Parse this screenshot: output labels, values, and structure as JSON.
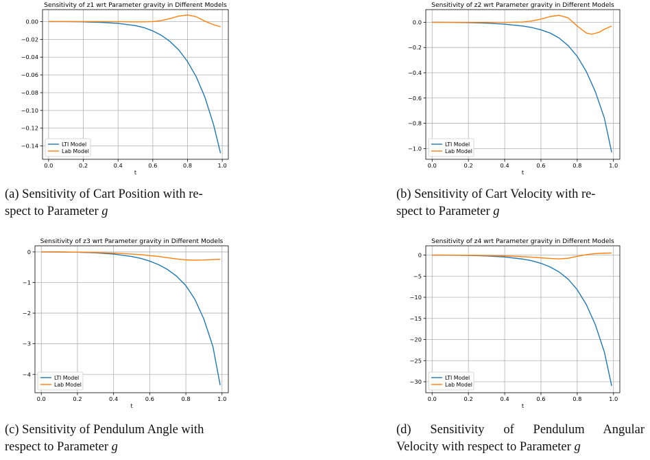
{
  "chart_data": [
    {
      "id": "a",
      "type": "line",
      "title": "Sensitivity of z1 wrt Parameter gravity in Different Models",
      "xlabel": "t",
      "ylabel": "",
      "xlim": [
        -0.035,
        1.035
      ],
      "ylim": [
        -0.155,
        0.0135
      ],
      "xticks": [
        0.0,
        0.2,
        0.4,
        0.6,
        0.8,
        1.0
      ],
      "yticks": [
        0.0,
        -0.02,
        -0.04,
        -0.06,
        -0.08,
        -0.1,
        -0.12,
        -0.14
      ],
      "ytick_decimals": 2,
      "grid": true,
      "legend": "lower-left",
      "series": [
        {
          "name": "LTI Model",
          "color": "#1f77b4",
          "x": [
            0,
            0.1,
            0.2,
            0.3,
            0.4,
            0.5,
            0.55,
            0.6,
            0.65,
            0.7,
            0.75,
            0.8,
            0.85,
            0.9,
            0.95,
            0.99
          ],
          "y": [
            0,
            0,
            -0.0003,
            -0.0008,
            -0.002,
            -0.0045,
            -0.0068,
            -0.0105,
            -0.0155,
            -0.0225,
            -0.032,
            -0.045,
            -0.062,
            -0.085,
            -0.116,
            -0.148
          ]
        },
        {
          "name": "Lab Model",
          "color": "#ff7f0e",
          "x": [
            0,
            0.1,
            0.2,
            0.3,
            0.4,
            0.5,
            0.55,
            0.6,
            0.65,
            0.7,
            0.75,
            0.8,
            0.85,
            0.9,
            0.95,
            0.99
          ],
          "y": [
            0,
            0,
            0,
            0,
            -0.0001,
            -0.0003,
            -0.0003,
            0,
            0.0012,
            0.0035,
            0.0062,
            0.0075,
            0.0055,
            0.0005,
            -0.0035,
            -0.0058
          ]
        }
      ]
    },
    {
      "id": "b",
      "type": "line",
      "title": "Sensitivity of z2 wrt Parameter gravity in Different Models",
      "xlabel": "t",
      "ylabel": "",
      "xlim": [
        -0.035,
        1.035
      ],
      "ylim": [
        -1.085,
        0.1
      ],
      "xticks": [
        0.0,
        0.2,
        0.4,
        0.6,
        0.8,
        1.0
      ],
      "yticks": [
        0.0,
        -0.2,
        -0.4,
        -0.6,
        -0.8,
        -1.0
      ],
      "ytick_decimals": 1,
      "grid": true,
      "legend": "lower-left",
      "series": [
        {
          "name": "LTI Model",
          "color": "#1f77b4",
          "x": [
            0,
            0.1,
            0.2,
            0.3,
            0.4,
            0.5,
            0.55,
            0.6,
            0.65,
            0.7,
            0.75,
            0.8,
            0.85,
            0.9,
            0.95,
            0.99
          ],
          "y": [
            0,
            -0.001,
            -0.003,
            -0.007,
            -0.015,
            -0.03,
            -0.042,
            -0.06,
            -0.085,
            -0.125,
            -0.185,
            -0.27,
            -0.39,
            -0.55,
            -0.76,
            -1.03
          ]
        },
        {
          "name": "Lab Model",
          "color": "#ff7f0e",
          "x": [
            0,
            0.1,
            0.2,
            0.3,
            0.4,
            0.5,
            0.55,
            0.6,
            0.65,
            0.7,
            0.75,
            0.8,
            0.85,
            0.88,
            0.92,
            0.95,
            0.99
          ],
          "y": [
            0,
            0,
            0,
            0,
            -0.001,
            0.002,
            0.01,
            0.025,
            0.045,
            0.055,
            0.035,
            -0.03,
            -0.085,
            -0.095,
            -0.08,
            -0.055,
            -0.03
          ]
        }
      ]
    },
    {
      "id": "c",
      "type": "line",
      "title": "Sensitivity of z3 wrt Parameter gravity in Different Models",
      "xlabel": "t",
      "ylabel": "",
      "xlim": [
        -0.035,
        1.035
      ],
      "ylim": [
        -4.6,
        0.2
      ],
      "xticks": [
        0.0,
        0.2,
        0.4,
        0.6,
        0.8,
        1.0
      ],
      "yticks": [
        0,
        -1,
        -2,
        -3,
        -4
      ],
      "ytick_decimals": 0,
      "grid": true,
      "legend": "lower-left",
      "series": [
        {
          "name": "LTI Model",
          "color": "#1f77b4",
          "x": [
            0,
            0.1,
            0.2,
            0.3,
            0.4,
            0.5,
            0.55,
            0.6,
            0.65,
            0.7,
            0.75,
            0.8,
            0.85,
            0.9,
            0.95,
            0.99
          ],
          "y": [
            0,
            -0.002,
            -0.01,
            -0.03,
            -0.07,
            -0.15,
            -0.21,
            -0.3,
            -0.42,
            -0.58,
            -0.8,
            -1.1,
            -1.55,
            -2.2,
            -3.1,
            -4.35
          ]
        },
        {
          "name": "Lab Model",
          "color": "#ff7f0e",
          "x": [
            0,
            0.1,
            0.2,
            0.3,
            0.4,
            0.5,
            0.55,
            0.6,
            0.65,
            0.7,
            0.75,
            0.8,
            0.85,
            0.9,
            0.95,
            0.99
          ],
          "y": [
            0,
            -0.002,
            -0.008,
            -0.02,
            -0.04,
            -0.07,
            -0.09,
            -0.12,
            -0.15,
            -0.19,
            -0.23,
            -0.26,
            -0.27,
            -0.265,
            -0.25,
            -0.24
          ]
        }
      ]
    },
    {
      "id": "d",
      "type": "line",
      "title": "Sensitivity of z4 wrt Parameter gravity in Different Models",
      "xlabel": "t",
      "ylabel": "",
      "xlim": [
        -0.035,
        1.035
      ],
      "ylim": [
        -32.6,
        2.2
      ],
      "xticks": [
        0.0,
        0.2,
        0.4,
        0.6,
        0.8,
        1.0
      ],
      "yticks": [
        0,
        -5,
        -10,
        -15,
        -20,
        -25,
        -30
      ],
      "ytick_decimals": 0,
      "grid": true,
      "legend": "lower-left",
      "series": [
        {
          "name": "LTI Model",
          "color": "#1f77b4",
          "x": [
            0,
            0.1,
            0.2,
            0.3,
            0.4,
            0.5,
            0.55,
            0.6,
            0.65,
            0.7,
            0.75,
            0.8,
            0.85,
            0.9,
            0.95,
            0.99
          ],
          "y": [
            0,
            -0.02,
            -0.08,
            -0.2,
            -0.45,
            -0.95,
            -1.35,
            -1.95,
            -2.8,
            -4.0,
            -5.7,
            -8.2,
            -11.7,
            -16.5,
            -23.0,
            -31.0
          ]
        },
        {
          "name": "Lab Model",
          "color": "#ff7f0e",
          "x": [
            0,
            0.1,
            0.2,
            0.3,
            0.4,
            0.5,
            0.55,
            0.6,
            0.65,
            0.7,
            0.75,
            0.8,
            0.85,
            0.9,
            0.95,
            0.99
          ],
          "y": [
            0,
            -0.01,
            -0.04,
            -0.1,
            -0.2,
            -0.38,
            -0.5,
            -0.65,
            -0.8,
            -0.9,
            -0.75,
            -0.3,
            0.1,
            0.35,
            0.45,
            0.5
          ]
        }
      ]
    }
  ],
  "captions": {
    "a": {
      "line1": "(a) Sensitivity of Cart Position with re-",
      "line2_prefix": "spect to Parameter ",
      "symbol": "g"
    },
    "b": {
      "line1": "(b) Sensitivity of Cart Velocity with re-",
      "line2_prefix": "spect to Parameter ",
      "symbol": "g"
    },
    "c": {
      "line1": "(c) Sensitivity of Pendulum Angle with",
      "line2_prefix": "respect to Parameter ",
      "symbol": "g"
    },
    "d": {
      "line1": "(d) Sensitivity of Pendulum Angular",
      "line2_prefix": "Velocity with respect to Parameter ",
      "symbol": "g"
    }
  }
}
